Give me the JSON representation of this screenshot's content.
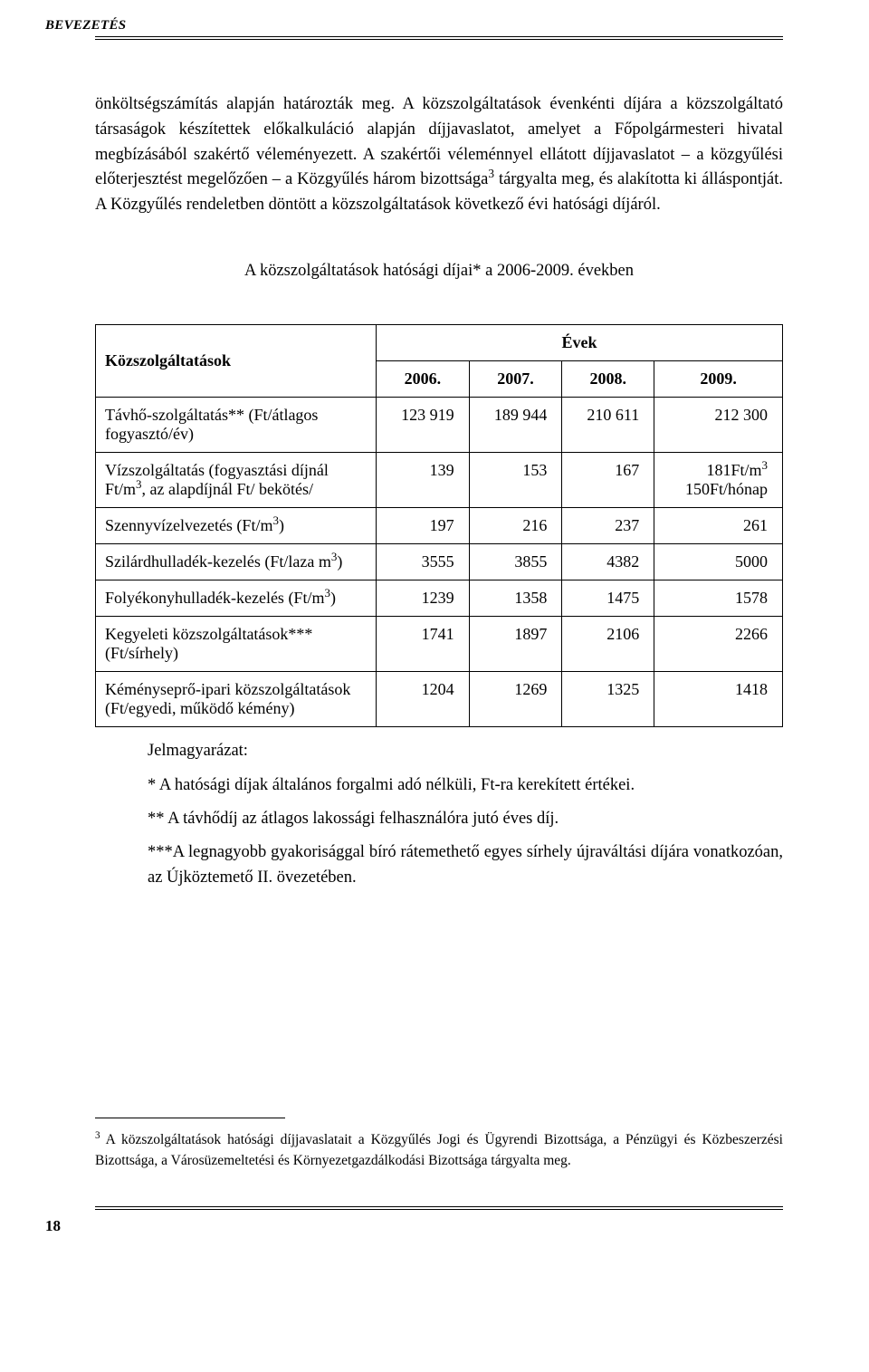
{
  "running_head": "BEVEZETÉS",
  "body_para": "önköltségszámítás alapján határozták meg. A közszolgáltatások évenkénti díjára a közszolgáltató társaságok készítettek előkalkuláció alapján díjjavaslatot, amelyet a Főpolgármesteri hivatal megbízásából szakértő véleményezett. A szakértői véleménnyel ellátott díjjavaslatot – a közgyűlési előterjesztést megelőzően – a Közgyűlés három bizottsága",
  "body_para_sup": "3",
  "body_para_tail": " tárgyalta meg, és alakította ki álláspontját. A Közgyűlés rendeletben döntött a közszolgáltatások következő évi hatósági díjáról.",
  "caption": "A közszolgáltatások hatósági díjai* a 2006-2009. években",
  "table": {
    "rowhead": "Közszolgáltatások",
    "years_label": "Évek",
    "years": [
      "2006.",
      "2007.",
      "2008.",
      "2009."
    ],
    "rows": [
      {
        "label": "Távhő-szolgáltatás** (Ft/átlagos fogyasztó/év)",
        "cells": [
          "123 919",
          "189 944",
          "210 611",
          "212 300"
        ]
      },
      {
        "label_html": "Vízszolgáltatás (fogyasztási díjnál Ft/m<sup>3</sup>, az alapdíjnál Ft/ bekötés/",
        "cells": [
          "139",
          "153",
          "167",
          "181Ft/m<sup>3</sup><br>150Ft/hónap"
        ]
      },
      {
        "label_html": "Szennyvízelvezetés (Ft/m<sup>3</sup>)",
        "cells": [
          "197",
          "216",
          "237",
          "261"
        ]
      },
      {
        "label_html": "Szilárdhulladék-kezelés (Ft/laza m<sup>3</sup>)",
        "cells": [
          "3555",
          "3855",
          "4382",
          "5000"
        ]
      },
      {
        "label_html": "Folyékonyhulladék-kezelés (Ft/m<sup>3</sup>)",
        "cells": [
          "1239",
          "1358",
          "1475",
          "1578"
        ]
      },
      {
        "label": "Kegyeleti közszolgáltatások*** (Ft/sírhely)",
        "cells": [
          "1741",
          "1897",
          "2106",
          "2266"
        ]
      },
      {
        "label": "Kéményseprő-ipari közszolgáltatások (Ft/egyedi, működő kémény)",
        "cells": [
          "1204",
          "1269",
          "1325",
          "1418"
        ]
      }
    ]
  },
  "legend": {
    "title": "Jelmagyarázat:",
    "items": [
      "*  A hatósági díjak általános forgalmi adó nélküli, Ft-ra kerekített értékei.",
      "**  A távhődíj az átlagos lakossági felhasználóra jutó éves díj.",
      "***A legnagyobb gyakorisággal bíró rátemethető egyes sírhely újraváltási díjára vonatkozóan, az Újköztemető II. övezetében."
    ]
  },
  "footnote": {
    "marker": "3",
    "text": " A közszolgáltatások hatósági díjjavaslatait a Közgyűlés Jogi és Ügyrendi Bizottsága, a Pénzügyi és Közbeszerzési Bizottsága, a Városüzemeltetési és Környezetgazdálkodási Bizottsága tárgyalta meg."
  },
  "page_number": "18"
}
